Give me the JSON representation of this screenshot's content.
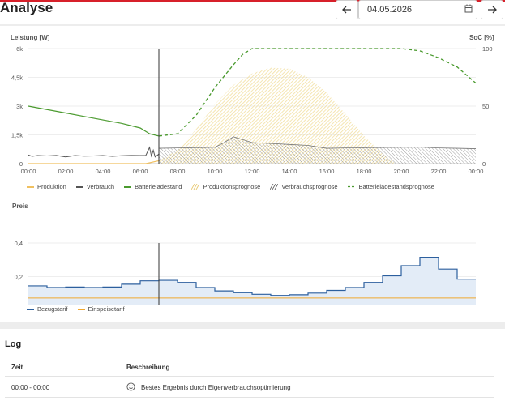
{
  "page": {
    "title": "Analyse"
  },
  "date_nav": {
    "prev_icon": "arrow-left-icon",
    "date_value": "04.05.2026",
    "calendar_icon": "calendar-icon",
    "next_icon": "arrow-right-icon"
  },
  "colors": {
    "production": "#f0c060",
    "consumption": "#555555",
    "battery": "#4a9a2e",
    "production_forecast": "#f2dfa0",
    "consumption_forecast": "#888888",
    "battery_forecast": "#4a9a2e",
    "purchase_tariff": "#2c5f9e",
    "feed_in_tariff": "#f0a830",
    "accent": "#d7202a"
  },
  "chart_data": [
    {
      "type": "area",
      "ylabel_left": "Leistung [W]",
      "ylabel_right": "SoC [%]",
      "y_left_ticks": [
        "6k",
        "4,5k",
        "3k",
        "1,5k",
        "0"
      ],
      "y_right_ticks": [
        "100",
        "50",
        "0"
      ],
      "ylim": [
        0,
        6000
      ],
      "ylim_right": [
        0,
        100
      ],
      "x_ticks": [
        "00:00",
        "02:00",
        "04:00",
        "06:00",
        "08:00",
        "10:00",
        "12:00",
        "14:00",
        "16:00",
        "18:00",
        "20:00",
        "22:00",
        "00:00"
      ],
      "now_hour": 7.0,
      "series": [
        {
          "name": "Produktion",
          "x": [
            0,
            6.3,
            7.0
          ],
          "values": [
            0,
            0,
            150
          ]
        },
        {
          "name": "Verbrauch",
          "x": [
            0,
            0.2,
            0.5,
            1,
            1.5,
            2,
            2.5,
            3,
            3.5,
            4,
            4.5,
            5,
            5.5,
            6,
            6.3,
            6.5,
            6.6,
            6.7,
            6.8,
            7.0
          ],
          "values": [
            450,
            380,
            420,
            400,
            430,
            350,
            420,
            390,
            400,
            420,
            380,
            410,
            430,
            420,
            430,
            850,
            400,
            700,
            350,
            500
          ]
        },
        {
          "name": "Batterieladestand",
          "x": [
            0,
            1,
            2,
            3,
            4,
            5,
            6,
            6.5,
            7.0
          ],
          "values": [
            50,
            47,
            44,
            41,
            38,
            35,
            31,
            26,
            24
          ]
        },
        {
          "name": "Produktionsprognose",
          "x": [
            7,
            8,
            9,
            10,
            11,
            12,
            13,
            14,
            15,
            16,
            17,
            18,
            19,
            19.7,
            20
          ],
          "values": [
            150,
            700,
            1800,
            3100,
            4100,
            4700,
            5000,
            4950,
            4500,
            3700,
            2600,
            1450,
            500,
            0,
            0
          ]
        },
        {
          "name": "Verbrauchsprognose",
          "x": [
            7,
            8,
            10,
            10.5,
            11,
            11.5,
            12,
            13,
            14,
            15,
            16,
            17,
            18,
            19,
            20,
            21,
            22,
            23,
            24
          ],
          "values": [
            800,
            820,
            850,
            1100,
            1400,
            1250,
            1100,
            1050,
            1000,
            950,
            800,
            820,
            830,
            840,
            850,
            860,
            820,
            800,
            780
          ]
        },
        {
          "name": "Batterieladestandsprognose",
          "x": [
            7,
            8,
            9,
            10,
            11,
            11.5,
            12,
            13,
            14,
            15,
            16,
            17,
            18,
            19,
            20,
            21,
            22,
            23,
            24
          ],
          "values": [
            24,
            26,
            42,
            66,
            86,
            95,
            100,
            100,
            100,
            100,
            100,
            100,
            100,
            100,
            100,
            98,
            92,
            84,
            70
          ]
        }
      ]
    },
    {
      "type": "line",
      "ylabel": "Preis",
      "y_ticks": [
        "0,4",
        "0,2",
        "0"
      ],
      "ylim": [
        0,
        0.4
      ],
      "x_ticks": [
        "00:00",
        "02:00",
        "04:00",
        "06:00",
        "08:00",
        "10:00",
        "12:00",
        "14:00",
        "16:00",
        "18:00",
        "20:00",
        "22:00",
        "00:00"
      ],
      "now_hour": 7.0,
      "series": [
        {
          "name": "Bezugstarif",
          "x": [
            0,
            1,
            2,
            3,
            4,
            5,
            6,
            7,
            8,
            9,
            10,
            11,
            12,
            13,
            14,
            15,
            16,
            17,
            18,
            19,
            20,
            21,
            22,
            23,
            24
          ],
          "values": [
            0.145,
            0.135,
            0.138,
            0.135,
            0.138,
            0.155,
            0.175,
            0.178,
            0.165,
            0.135,
            0.115,
            0.105,
            0.095,
            0.088,
            0.092,
            0.102,
            0.118,
            0.135,
            0.165,
            0.205,
            0.265,
            0.315,
            0.245,
            0.185,
            0.165
          ]
        },
        {
          "name": "Einspeisetarif",
          "x": [
            0,
            24
          ],
          "values": [
            0.073,
            0.073
          ]
        }
      ]
    }
  ],
  "legend_power": [
    {
      "label": "Produktion",
      "style": "solid-line"
    },
    {
      "label": "Verbrauch",
      "style": "solid-line"
    },
    {
      "label": "Batterieladestand",
      "style": "solid-line"
    },
    {
      "label": "Produktionsprognose",
      "style": "hatch"
    },
    {
      "label": "Verbrauchsprognose",
      "style": "hatch"
    },
    {
      "label": "Batterieladestandsprognose",
      "style": "dashed"
    }
  ],
  "legend_price": [
    {
      "label": "Bezugstarif",
      "style": "solid-line"
    },
    {
      "label": "Einspeisetarif",
      "style": "solid-line"
    }
  ],
  "log": {
    "title": "Log",
    "col_time": "Zeit",
    "col_desc": "Beschreibung",
    "rows": [
      {
        "time": "00:00 - 00:00",
        "icon": "smiley-icon",
        "desc": "Bestes Ergebnis durch Eigenverbrauchsoptimierung"
      }
    ]
  }
}
